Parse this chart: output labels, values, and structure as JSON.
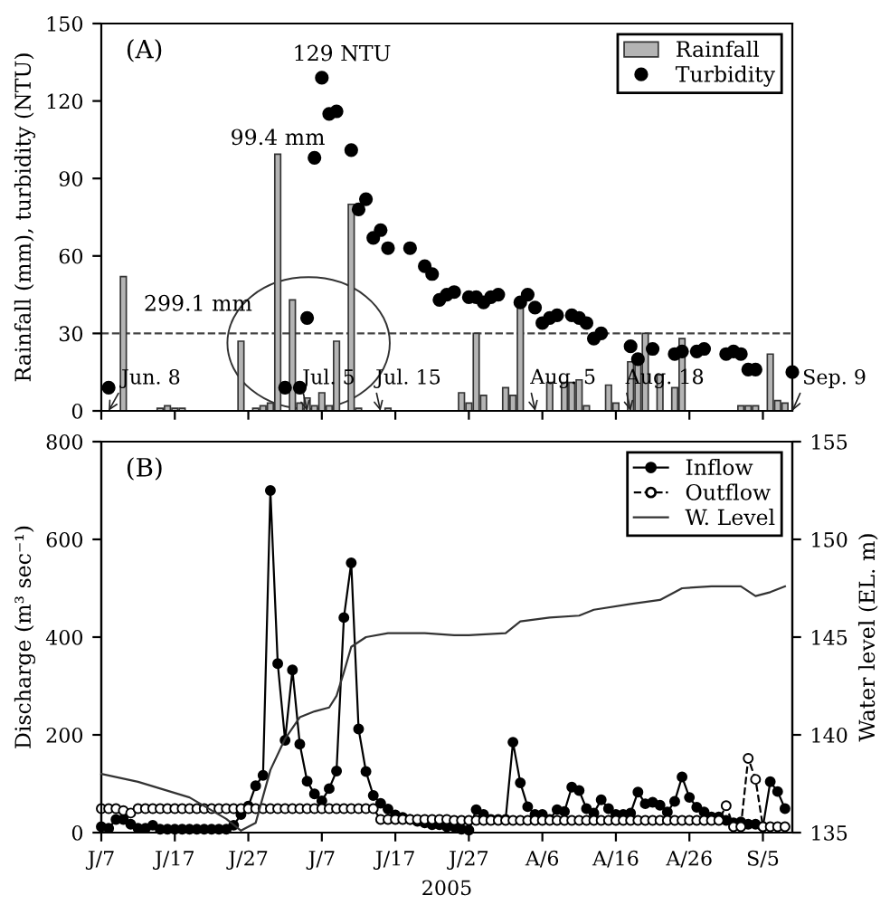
{
  "chart_data": [
    {
      "type": "bar",
      "ylabel": "Rainfall (mm), turbidity (NTU)",
      "xlim": [
        "2005-06-07",
        "2005-09-09"
      ],
      "xticks": [
        {
          "value": "2005-06-07",
          "label": null
        },
        {
          "value": "2005-06-17",
          "label": null
        },
        {
          "value": "2005-06-27",
          "label": null
        },
        {
          "value": "2005-07-07",
          "label": null
        },
        {
          "value": "2005-07-17",
          "label": null
        },
        {
          "value": "2005-07-27",
          "label": null
        },
        {
          "value": "2005-08-06",
          "label": null
        },
        {
          "value": "2005-08-16",
          "label": null
        },
        {
          "value": "2005-08-26",
          "label": null
        },
        {
          "value": "2005-09-05",
          "label": null
        }
      ],
      "tick_labels": "y",
      "ylim": [
        0,
        150
      ],
      "yticks": [
        0,
        30,
        60,
        90,
        120,
        150
      ],
      "legend": "top right",
      "ref_lines": [
        {
          "axis": "y",
          "value": 30,
          "label": null,
          "color": "#444444",
          "line_style": "dashed"
        }
      ],
      "annotations": [
        "(A)",
        {
          "text": "129 NTU",
          "x": "2005-07-07",
          "y": 129
        },
        {
          "text": "99.4 mm",
          "x": "2005-07-01",
          "y": 99.4
        },
        {
          "text": "299.1 mm",
          "x": "2005-07-03",
          "y": 43
        },
        "Jun. 8",
        "Jul. 5",
        "Jul. 15",
        "Aug. 5",
        "Aug. 18",
        "Sep. 9"
      ],
      "series": [
        {
          "name": "Rainfall",
          "color": "#b4b4b4",
          "x": [
            "2005-06-10",
            "2005-06-15",
            "2005-06-16",
            "2005-06-17",
            "2005-06-18",
            "2005-06-26",
            "2005-06-28",
            "2005-06-29",
            "2005-06-30",
            "2005-07-01",
            "2005-07-03",
            "2005-07-04",
            "2005-07-05",
            "2005-07-06",
            "2005-07-07",
            "2005-07-08",
            "2005-07-09",
            "2005-07-11",
            "2005-07-12",
            "2005-07-16",
            "2005-07-26",
            "2005-07-27",
            "2005-07-28",
            "2005-07-29",
            "2005-08-01",
            "2005-08-02",
            "2005-08-03",
            "2005-08-07",
            "2005-08-09",
            "2005-08-10",
            "2005-08-11",
            "2005-08-12",
            "2005-08-15",
            "2005-08-16",
            "2005-08-18",
            "2005-08-19",
            "2005-08-20",
            "2005-08-22",
            "2005-08-24",
            "2005-08-25",
            "2005-09-02",
            "2005-09-03",
            "2005-09-04",
            "2005-09-06",
            "2005-09-07",
            "2005-09-08"
          ],
          "values": [
            52,
            1,
            2,
            1,
            1,
            27,
            1,
            2,
            3,
            99.4,
            43,
            3,
            5,
            2,
            7,
            2,
            27,
            80,
            1,
            1,
            7,
            3,
            30,
            6,
            9,
            6,
            40,
            11,
            11,
            11,
            12,
            2,
            10,
            3,
            19,
            19,
            30,
            14,
            9,
            28,
            2,
            2,
            2,
            22,
            4,
            3
          ]
        },
        {
          "name": "Turbidity",
          "type": "scatter",
          "marker": "circle",
          "color": "#000000",
          "x": [
            "2005-06-08",
            "2005-07-02",
            "2005-07-04",
            "2005-07-05",
            "2005-07-06",
            "2005-07-07",
            "2005-07-08",
            "2005-07-09",
            "2005-07-11",
            "2005-07-12",
            "2005-07-13",
            "2005-07-14",
            "2005-07-15",
            "2005-07-16",
            "2005-07-19",
            "2005-07-21",
            "2005-07-22",
            "2005-07-23",
            "2005-07-24",
            "2005-07-25",
            "2005-07-27",
            "2005-07-28",
            "2005-07-29",
            "2005-07-30",
            "2005-07-31",
            "2005-08-03",
            "2005-08-04",
            "2005-08-05",
            "2005-08-06",
            "2005-08-07",
            "2005-08-08",
            "2005-08-10",
            "2005-08-11",
            "2005-08-12",
            "2005-08-13",
            "2005-08-14",
            "2005-08-18",
            "2005-08-19",
            "2005-08-21",
            "2005-08-24",
            "2005-08-25",
            "2005-08-27",
            "2005-08-28",
            "2005-08-31",
            "2005-09-01",
            "2005-09-02",
            "2005-09-03",
            "2005-09-04",
            "2005-09-09"
          ],
          "values": [
            9,
            9,
            9,
            36,
            98,
            129,
            115,
            116,
            101,
            78,
            82,
            67,
            70,
            63,
            63,
            56,
            53,
            43,
            45,
            46,
            44,
            44,
            42,
            44,
            45,
            42,
            45,
            40,
            34,
            36,
            37,
            37,
            36,
            34,
            28,
            30,
            25,
            20,
            24,
            22,
            23,
            23,
            24,
            22,
            23,
            22,
            16,
            16,
            15
          ]
        }
      ]
    },
    {
      "type": "line",
      "xlabel": "2005",
      "ylabel": "Discharge (m³ sec⁻¹)",
      "y2label": "Water level (EL. m)",
      "xlim": [
        "2005-06-07",
        "2005-09-09"
      ],
      "xticks": [
        {
          "value": "2005-06-07",
          "label": "J/7"
        },
        {
          "value": "2005-06-17",
          "label": "J/17"
        },
        {
          "value": "2005-06-27",
          "label": "J/27"
        },
        {
          "value": "2005-07-07",
          "label": "J/7"
        },
        {
          "value": "2005-07-17",
          "label": "J/17"
        },
        {
          "value": "2005-07-27",
          "label": "J/27"
        },
        {
          "value": "2005-08-06",
          "label": "A/6"
        },
        {
          "value": "2005-08-16",
          "label": "A/16"
        },
        {
          "value": "2005-08-26",
          "label": "A/26"
        },
        {
          "value": "2005-09-05",
          "label": "S/5"
        }
      ],
      "ylim": [
        0,
        800
      ],
      "yticks": [
        0,
        200,
        400,
        600,
        800
      ],
      "y2lim": [
        135,
        155
      ],
      "y2ticks": [
        135,
        140,
        145,
        150,
        155
      ],
      "legend": "top right",
      "annotations": [
        "(B)"
      ],
      "x": [
        "2005-06-07",
        "2005-06-08",
        "2005-06-09",
        "2005-06-10",
        "2005-06-11",
        "2005-06-12",
        "2005-06-13",
        "2005-06-14",
        "2005-06-15",
        "2005-06-16",
        "2005-06-17",
        "2005-06-18",
        "2005-06-19",
        "2005-06-20",
        "2005-06-21",
        "2005-06-22",
        "2005-06-23",
        "2005-06-24",
        "2005-06-25",
        "2005-06-26",
        "2005-06-27",
        "2005-06-28",
        "2005-06-29",
        "2005-06-30",
        "2005-07-01",
        "2005-07-02",
        "2005-07-03",
        "2005-07-04",
        "2005-07-05",
        "2005-07-06",
        "2005-07-07",
        "2005-07-08",
        "2005-07-09",
        "2005-07-10",
        "2005-07-11",
        "2005-07-12",
        "2005-07-13",
        "2005-07-14",
        "2005-07-15",
        "2005-07-16",
        "2005-07-17",
        "2005-07-18",
        "2005-07-19",
        "2005-07-20",
        "2005-07-21",
        "2005-07-22",
        "2005-07-23",
        "2005-07-24",
        "2005-07-25",
        "2005-07-26",
        "2005-07-27",
        "2005-07-28",
        "2005-07-29",
        "2005-07-30",
        "2005-07-31",
        "2005-08-01",
        "2005-08-02",
        "2005-08-03",
        "2005-08-04",
        "2005-08-05",
        "2005-08-06",
        "2005-08-07",
        "2005-08-08",
        "2005-08-09",
        "2005-08-10",
        "2005-08-11",
        "2005-08-12",
        "2005-08-13",
        "2005-08-14",
        "2005-08-15",
        "2005-08-16",
        "2005-08-17",
        "2005-08-18",
        "2005-08-19",
        "2005-08-20",
        "2005-08-21",
        "2005-08-22",
        "2005-08-23",
        "2005-08-24",
        "2005-08-25",
        "2005-08-26",
        "2005-08-27",
        "2005-08-28",
        "2005-08-29",
        "2005-08-30",
        "2005-08-31",
        "2005-09-01",
        "2005-09-02",
        "2005-09-03",
        "2005-09-04",
        "2005-09-05",
        "2005-09-06",
        "2005-09-07",
        "2005-09-08"
      ],
      "series": [
        {
          "name": "Inflow",
          "marker": "circle",
          "line_style": "solid",
          "color": "#000000",
          "values": [
            12,
            9,
            27,
            27,
            17,
            9,
            9,
            15,
            7,
            7,
            7,
            7,
            7,
            7,
            7,
            7,
            7,
            7,
            15,
            37,
            54,
            96,
            117,
            700,
            346,
            189,
            333,
            181,
            105,
            79,
            65,
            90,
            126,
            440,
            552,
            212,
            125,
            76,
            60,
            48,
            36,
            31,
            27,
            23,
            20,
            16,
            16,
            12,
            12,
            7,
            5,
            47,
            37,
            27,
            27,
            27,
            185,
            102,
            53,
            37,
            37,
            27,
            47,
            43,
            93,
            86,
            49,
            40,
            67,
            49,
            37,
            37,
            40,
            83,
            59,
            62,
            56,
            42,
            64,
            114,
            72,
            52,
            42,
            32,
            32,
            25,
            20,
            22,
            17,
            17,
            12,
            104,
            84,
            49
          ]
        },
        {
          "name": "Outflow",
          "marker": "circle",
          "line_style": "dashed",
          "color": "#000000",
          "values": [
            49,
            49,
            49,
            45,
            40,
            49,
            49,
            49,
            49,
            49,
            49,
            49,
            49,
            49,
            49,
            49,
            49,
            49,
            49,
            49,
            49,
            49,
            49,
            49,
            49,
            49,
            49,
            49,
            49,
            49,
            49,
            49,
            49,
            49,
            49,
            49,
            49,
            49,
            27,
            27,
            27,
            27,
            27,
            27,
            27,
            27,
            27,
            27,
            25,
            25,
            25,
            25,
            25,
            25,
            25,
            25,
            25,
            25,
            25,
            25,
            25,
            25,
            25,
            25,
            25,
            25,
            25,
            25,
            25,
            25,
            25,
            25,
            25,
            25,
            25,
            25,
            25,
            25,
            25,
            25,
            25,
            25,
            25,
            25,
            25,
            55,
            12,
            12,
            152,
            109,
            12,
            12,
            12,
            12
          ]
        },
        {
          "name": "W. Level",
          "marker": "none",
          "line_style": "solid",
          "color": "#333333",
          "axis": "y2",
          "x": [
            "2005-06-07",
            "2005-06-12",
            "2005-06-19",
            "2005-06-24",
            "2005-06-26",
            "2005-06-28",
            "2005-06-30",
            "2005-07-02",
            "2005-07-04",
            "2005-07-06",
            "2005-07-08",
            "2005-07-09",
            "2005-07-10",
            "2005-07-11",
            "2005-07-13",
            "2005-07-16",
            "2005-07-21",
            "2005-07-25",
            "2005-07-27",
            "2005-08-01",
            "2005-08-03",
            "2005-08-07",
            "2005-08-11",
            "2005-08-13",
            "2005-08-18",
            "2005-08-22",
            "2005-08-25",
            "2005-08-29",
            "2005-09-02",
            "2005-09-04",
            "2005-09-06",
            "2005-09-08"
          ],
          "values": [
            138.0,
            137.6,
            136.8,
            135.7,
            135.1,
            135.5,
            138.2,
            139.8,
            140.9,
            141.2,
            141.4,
            142.0,
            143.2,
            144.5,
            145.0,
            145.2,
            145.2,
            145.1,
            145.1,
            145.2,
            145.8,
            146.0,
            146.1,
            146.4,
            146.7,
            146.9,
            147.5,
            147.6,
            147.6,
            147.1,
            147.3,
            147.6
          ]
        }
      ]
    }
  ]
}
